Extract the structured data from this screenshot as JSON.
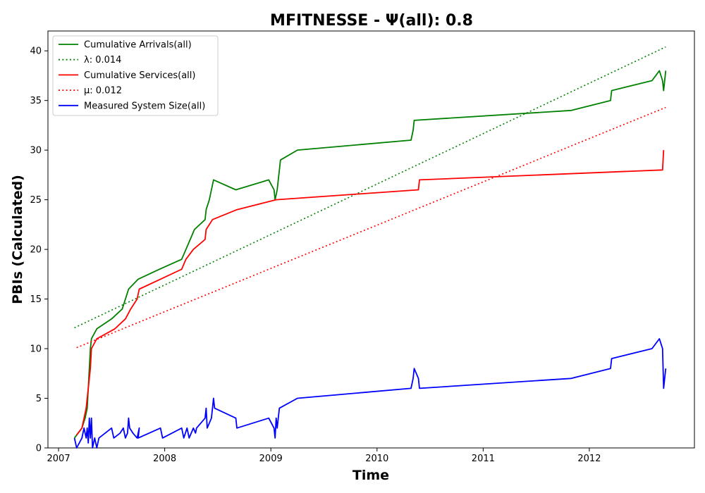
{
  "chart_data": {
    "type": "line",
    "title": "MFITNESSE -  Ψ(all): 0.8",
    "xlabel": "Time",
    "ylabel": "PBIs (Calculated)",
    "xlim": [
      2006.9,
      2012.99
    ],
    "ylim": [
      0,
      42
    ],
    "x_ticks": [
      2007,
      2008,
      2009,
      2010,
      2011,
      2012
    ],
    "y_ticks": [
      0,
      5,
      10,
      15,
      20,
      25,
      30,
      35,
      40
    ],
    "grid": false,
    "legend_position": "top-left",
    "series": [
      {
        "name": "Cumulative Arrivals(all)",
        "color": "#008000",
        "style": "solid",
        "points": [
          [
            2007.15,
            1
          ],
          [
            2007.22,
            2
          ],
          [
            2007.25,
            3
          ],
          [
            2007.27,
            4
          ],
          [
            2007.28,
            6
          ],
          [
            2007.29,
            8
          ],
          [
            2007.3,
            10
          ],
          [
            2007.31,
            11
          ],
          [
            2007.36,
            12
          ],
          [
            2007.5,
            13
          ],
          [
            2007.6,
            14
          ],
          [
            2007.63,
            15
          ],
          [
            2007.66,
            16
          ],
          [
            2007.75,
            17
          ],
          [
            2007.95,
            18
          ],
          [
            2008.16,
            19
          ],
          [
            2008.24,
            21
          ],
          [
            2008.28,
            22
          ],
          [
            2008.38,
            23
          ],
          [
            2008.39,
            24
          ],
          [
            2008.42,
            25
          ],
          [
            2008.44,
            26
          ],
          [
            2008.46,
            27
          ],
          [
            2008.67,
            26
          ],
          [
            2008.98,
            27
          ],
          [
            2009.03,
            26
          ],
          [
            2009.04,
            25
          ],
          [
            2009.06,
            26
          ],
          [
            2009.07,
            27
          ],
          [
            2009.08,
            28
          ],
          [
            2009.09,
            29
          ],
          [
            2009.25,
            30
          ],
          [
            2010.32,
            31
          ],
          [
            2010.34,
            32
          ],
          [
            2010.35,
            33
          ],
          [
            2011.83,
            34
          ],
          [
            2012.2,
            35
          ],
          [
            2012.21,
            36
          ],
          [
            2012.59,
            37
          ],
          [
            2012.66,
            38
          ],
          [
            2012.69,
            37
          ],
          [
            2012.7,
            36
          ],
          [
            2012.71,
            37
          ],
          [
            2012.72,
            38
          ]
        ]
      },
      {
        "name": "λ: 0.014",
        "color": "#008000",
        "style": "dotted",
        "points": [
          [
            2007.15,
            12.1
          ],
          [
            2012.72,
            40.4
          ]
        ]
      },
      {
        "name": "Cumulative Services(all)",
        "color": "#ff0000",
        "style": "solid",
        "points": [
          [
            2007.17,
            1.3
          ],
          [
            2007.22,
            2
          ],
          [
            2007.26,
            4
          ],
          [
            2007.28,
            6
          ],
          [
            2007.29,
            7
          ],
          [
            2007.3,
            8
          ],
          [
            2007.31,
            10
          ],
          [
            2007.36,
            11
          ],
          [
            2007.53,
            12
          ],
          [
            2007.63,
            13
          ],
          [
            2007.68,
            14
          ],
          [
            2007.74,
            15
          ],
          [
            2007.76,
            16
          ],
          [
            2007.96,
            17
          ],
          [
            2008.16,
            18
          ],
          [
            2008.2,
            19
          ],
          [
            2008.27,
            20
          ],
          [
            2008.38,
            21
          ],
          [
            2008.39,
            22
          ],
          [
            2008.45,
            23
          ],
          [
            2008.68,
            24
          ],
          [
            2009.05,
            25
          ],
          [
            2010.39,
            26
          ],
          [
            2010.4,
            27
          ],
          [
            2012.69,
            28
          ],
          [
            2012.7,
            30
          ]
        ]
      },
      {
        "name": "μ: 0.012",
        "color": "#ff0000",
        "style": "dotted",
        "points": [
          [
            2007.17,
            10.1
          ],
          [
            2012.72,
            34.3
          ]
        ]
      },
      {
        "name": "Measured System Size(all)",
        "color": "#0000ff",
        "style": "solid",
        "points": [
          [
            2007.15,
            1
          ],
          [
            2007.17,
            0
          ],
          [
            2007.22,
            1
          ],
          [
            2007.24,
            2
          ],
          [
            2007.26,
            1
          ],
          [
            2007.27,
            2
          ],
          [
            2007.28,
            0.5
          ],
          [
            2007.29,
            3
          ],
          [
            2007.3,
            1
          ],
          [
            2007.31,
            3
          ],
          [
            2007.32,
            0
          ],
          [
            2007.34,
            1
          ],
          [
            2007.36,
            0
          ],
          [
            2007.38,
            1
          ],
          [
            2007.5,
            2
          ],
          [
            2007.52,
            1
          ],
          [
            2007.58,
            1.5
          ],
          [
            2007.61,
            2
          ],
          [
            2007.63,
            1
          ],
          [
            2007.65,
            1.5
          ],
          [
            2007.66,
            3
          ],
          [
            2007.67,
            2
          ],
          [
            2007.7,
            1.5
          ],
          [
            2007.74,
            1
          ],
          [
            2007.76,
            2
          ],
          [
            2007.75,
            1
          ],
          [
            2007.96,
            2
          ],
          [
            2007.98,
            1
          ],
          [
            2008.16,
            2
          ],
          [
            2008.18,
            1
          ],
          [
            2008.21,
            2
          ],
          [
            2008.23,
            1
          ],
          [
            2008.27,
            2
          ],
          [
            2008.29,
            1.5
          ],
          [
            2008.3,
            2
          ],
          [
            2008.38,
            3
          ],
          [
            2008.39,
            4
          ],
          [
            2008.4,
            2
          ],
          [
            2008.44,
            3
          ],
          [
            2008.45,
            4
          ],
          [
            2008.46,
            5
          ],
          [
            2008.47,
            4
          ],
          [
            2008.67,
            3
          ],
          [
            2008.68,
            2
          ],
          [
            2008.98,
            3
          ],
          [
            2009.03,
            2
          ],
          [
            2009.04,
            1
          ],
          [
            2009.05,
            3
          ],
          [
            2009.06,
            2
          ],
          [
            2009.07,
            3
          ],
          [
            2009.08,
            4
          ],
          [
            2009.25,
            5
          ],
          [
            2010.32,
            6
          ],
          [
            2010.34,
            7
          ],
          [
            2010.35,
            8
          ],
          [
            2010.39,
            7
          ],
          [
            2010.4,
            6
          ],
          [
            2011.83,
            7
          ],
          [
            2012.2,
            8
          ],
          [
            2012.21,
            9
          ],
          [
            2012.59,
            10
          ],
          [
            2012.66,
            11
          ],
          [
            2012.69,
            10
          ],
          [
            2012.7,
            6
          ],
          [
            2012.71,
            7
          ],
          [
            2012.72,
            8
          ]
        ]
      }
    ]
  }
}
